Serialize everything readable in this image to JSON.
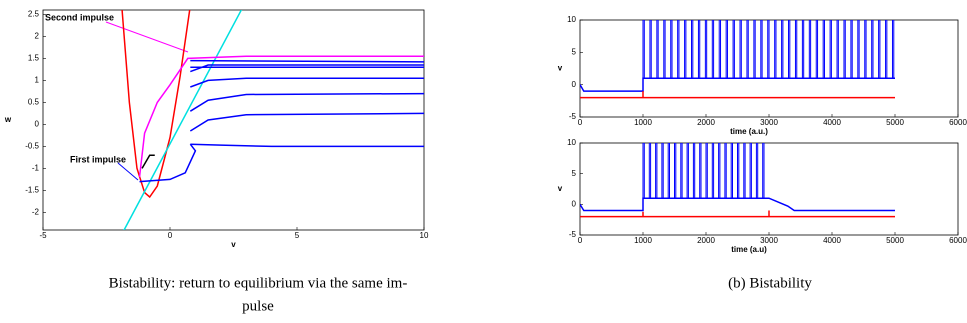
{
  "figure": {
    "caption_a": [
      "Bistability: return to equilibrium via the same im-",
      "pulse"
    ],
    "caption_b": "(b) Bistability"
  },
  "chart_data": [
    {
      "type": "line",
      "xlabel": "v",
      "ylabel": "w",
      "xlim": [
        -5,
        10
      ],
      "ylim": [
        -2.4,
        2.6
      ],
      "xticks": [
        -5,
        0,
        5,
        10
      ],
      "yticks": [
        -2,
        -1.5,
        -1,
        -0.5,
        0,
        0.5,
        1,
        1.5,
        2,
        2.5
      ],
      "annotations": [
        {
          "text": "Second impulse",
          "color": "#ff00ff"
        },
        {
          "text": "First impulse",
          "color": "#0000ff"
        }
      ],
      "series": [
        {
          "color": "#ff0000",
          "x": [
            -1.9,
            -1.6,
            -1.3,
            -1.0,
            -0.8,
            -0.5,
            0,
            0.4,
            0.8
          ],
          "values": [
            2.7,
            0.5,
            -1.0,
            -1.55,
            -1.65,
            -1.4,
            -0.3,
            1.1,
            2.7
          ]
        },
        {
          "color": "#00e0e0",
          "x": [
            -1.9,
            2.9
          ],
          "values": [
            -2.5,
            2.7
          ]
        },
        {
          "color": "#0000ff",
          "x": [
            -1.2,
            0,
            0.6,
            1.0,
            0.8
          ],
          "values": [
            -1.3,
            -1.25,
            -1.1,
            -0.6,
            -0.45
          ]
        },
        {
          "color": "#0000ff",
          "x": [
            0.8,
            2,
            4,
            10
          ],
          "values": [
            -0.45,
            -0.47,
            -0.5,
            -0.5
          ]
        },
        {
          "color": "#0000ff",
          "x": [
            0.8,
            1.5,
            3,
            10
          ],
          "values": [
            -0.15,
            0.1,
            0.22,
            0.25
          ]
        },
        {
          "color": "#0000ff",
          "x": [
            0.8,
            1.5,
            3,
            10
          ],
          "values": [
            0.3,
            0.55,
            0.68,
            0.7
          ]
        },
        {
          "color": "#0000ff",
          "x": [
            0.8,
            1.5,
            3,
            10
          ],
          "values": [
            0.85,
            1.0,
            1.05,
            1.05
          ]
        },
        {
          "color": "#0000ff",
          "x": [
            0.8,
            1.5,
            10
          ],
          "values": [
            1.2,
            1.35,
            1.35
          ]
        },
        {
          "color": "#0000ff",
          "x": [
            0.8,
            10
          ],
          "values": [
            1.3,
            1.3
          ]
        },
        {
          "color": "#0000ff",
          "x": [
            0.8,
            10
          ],
          "values": [
            1.45,
            1.42
          ]
        },
        {
          "color": "#ff00ff",
          "x": [
            -1.2,
            -1.0,
            -0.5,
            0,
            0.7,
            3,
            10
          ],
          "values": [
            -1.2,
            -0.2,
            0.5,
            0.9,
            1.5,
            1.55,
            1.55
          ]
        },
        {
          "color": "#000000",
          "x": [
            -1.1,
            -0.8,
            -0.6
          ],
          "values": [
            -1.0,
            -0.7,
            -0.7
          ]
        }
      ]
    },
    {
      "type": "line",
      "xlabel": "time (a.u.)",
      "ylabel": "v",
      "xlim": [
        0,
        6000
      ],
      "ylim": [
        -5,
        10
      ],
      "xticks": [
        0,
        1000,
        2000,
        3000,
        4000,
        5000,
        6000
      ],
      "yticks": [
        -5,
        0,
        5,
        10
      ],
      "series": [
        {
          "color": "#0000ff",
          "x": [
            0,
            60,
            1000,
            1000,
            5000
          ],
          "values": [
            0,
            -1,
            -1,
            1,
            1
          ]
        },
        {
          "color": "#ff0000",
          "x": [
            0,
            1000,
            1000,
            1000,
            5000
          ],
          "values": [
            -2,
            -2,
            -1,
            -2,
            -2
          ]
        }
      ],
      "spikes": {
        "color": "#0000ff",
        "peak": 10,
        "trough": 1,
        "x": [
          1000,
          1110,
          1220,
          1330,
          1440,
          1550,
          1660,
          1770,
          1880,
          1990,
          2100,
          2210,
          2320,
          2430,
          2540,
          2650,
          2760,
          2870,
          2980,
          3090,
          3200,
          3310,
          3420,
          3530,
          3640,
          3750,
          3860,
          3970,
          4080,
          4190,
          4300,
          4410,
          4520,
          4630,
          4740,
          4850,
          4960
        ]
      }
    },
    {
      "type": "line",
      "xlabel": "time (a.u)",
      "ylabel": "v",
      "xlim": [
        0,
        6000
      ],
      "ylim": [
        -5,
        10
      ],
      "xticks": [
        0,
        1000,
        2000,
        3000,
        4000,
        5000,
        6000
      ],
      "yticks": [
        -5,
        0,
        5,
        10
      ],
      "series": [
        {
          "color": "#0000ff",
          "x": [
            0,
            60,
            1000,
            1000,
            3000,
            3300,
            3400,
            5000
          ],
          "values": [
            0,
            -1,
            -1,
            1,
            1,
            -0.3,
            -1,
            -1
          ]
        },
        {
          "color": "#ff0000",
          "x": [
            0,
            1000,
            1000,
            1000,
            3000,
            3000,
            3000,
            5000
          ],
          "values": [
            -2,
            -2,
            -1.2,
            -2,
            -2,
            -1,
            -2,
            -2
          ]
        }
      ],
      "spikes": {
        "color": "#0000ff",
        "peak": 10,
        "trough": 1,
        "x": [
          1000,
          1100,
          1200,
          1300,
          1400,
          1500,
          1600,
          1700,
          1800,
          1900,
          2000,
          2100,
          2200,
          2300,
          2400,
          2500,
          2600,
          2700,
          2800,
          2900
        ]
      }
    }
  ]
}
